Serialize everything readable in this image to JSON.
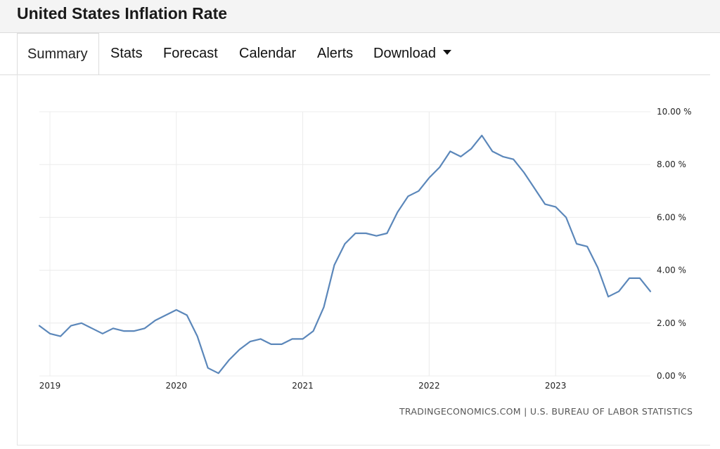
{
  "header": {
    "title": "United States Inflation Rate"
  },
  "tabs": [
    {
      "label": "Summary",
      "active": true
    },
    {
      "label": "Stats"
    },
    {
      "label": "Forecast"
    },
    {
      "label": "Calendar"
    },
    {
      "label": "Alerts"
    },
    {
      "label": "Download",
      "dropdown": true
    }
  ],
  "source": "TRADINGECONOMICS.COM | U.S. BUREAU OF LABOR STATISTICS",
  "colors": {
    "line": "#5b87ba",
    "grid": "#ececec"
  },
  "chart_data": {
    "type": "line",
    "title": "",
    "xlabel": "",
    "ylabel": "",
    "ylim": [
      0,
      10
    ],
    "yticks": [
      "0.00 %",
      "2.00 %",
      "4.00 %",
      "6.00 %",
      "8.00 %",
      "10.00 %"
    ],
    "xticks": [
      "2019",
      "2020",
      "2021",
      "2022",
      "2023"
    ],
    "grid": true,
    "legend": "none",
    "series": [
      {
        "x": [
          "2018-12",
          "2019-01",
          "2019-02",
          "2019-03",
          "2019-04",
          "2019-05",
          "2019-06",
          "2019-07",
          "2019-08",
          "2019-09",
          "2019-10",
          "2019-11",
          "2019-12",
          "2020-01",
          "2020-02",
          "2020-03",
          "2020-04",
          "2020-05",
          "2020-06",
          "2020-07",
          "2020-08",
          "2020-09",
          "2020-10",
          "2020-11",
          "2020-12",
          "2021-01",
          "2021-02",
          "2021-03",
          "2021-04",
          "2021-05",
          "2021-06",
          "2021-07",
          "2021-08",
          "2021-09",
          "2021-10",
          "2021-11",
          "2021-12",
          "2022-01",
          "2022-02",
          "2022-03",
          "2022-04",
          "2022-05",
          "2022-06",
          "2022-07",
          "2022-08",
          "2022-09",
          "2022-10",
          "2022-11",
          "2022-12",
          "2023-01",
          "2023-02",
          "2023-03",
          "2023-04",
          "2023-05",
          "2023-06",
          "2023-07",
          "2023-08",
          "2023-09",
          "2023-10"
        ],
        "values": [
          1.9,
          1.6,
          1.5,
          1.9,
          2.0,
          1.8,
          1.6,
          1.8,
          1.7,
          1.7,
          1.8,
          2.1,
          2.3,
          2.5,
          2.3,
          1.5,
          0.3,
          0.1,
          0.6,
          1.0,
          1.3,
          1.4,
          1.2,
          1.2,
          1.4,
          1.4,
          1.7,
          2.6,
          4.2,
          5.0,
          5.4,
          5.4,
          5.3,
          5.4,
          6.2,
          6.8,
          7.0,
          7.5,
          7.9,
          8.5,
          8.3,
          8.6,
          9.1,
          8.5,
          8.3,
          8.2,
          7.7,
          7.1,
          6.5,
          6.4,
          6.0,
          5.0,
          4.9,
          4.1,
          3.0,
          3.2,
          3.7,
          3.7,
          3.2
        ]
      }
    ]
  }
}
